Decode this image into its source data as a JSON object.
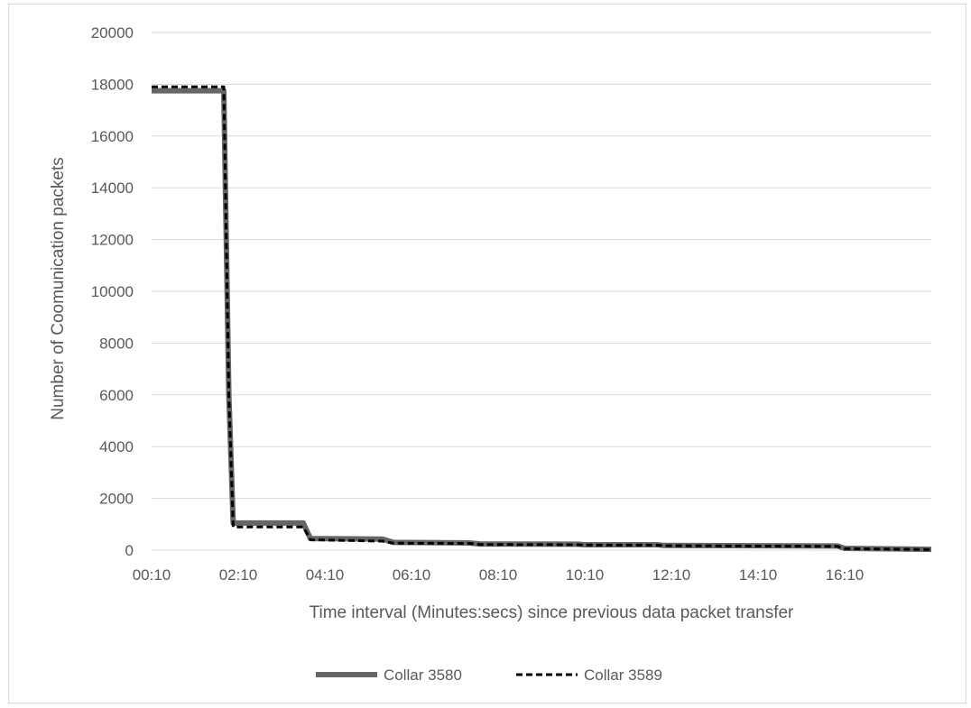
{
  "chart_data": {
    "type": "line",
    "title": "",
    "xlabel": "Time interval (Minutes:secs)  since previous data packet transfer",
    "ylabel": "Number of Coomunication packets",
    "ylim": [
      0,
      20000
    ],
    "y_ticks": [
      "0",
      "2000",
      "4000",
      "6000",
      "8000",
      "10000",
      "12000",
      "14000",
      "16000",
      "18000",
      "20000"
    ],
    "x_ticks": [
      "00:10",
      "02:10",
      "04:10",
      "06:10",
      "08:10",
      "10:10",
      "12:10",
      "14:10",
      "16:10"
    ],
    "x_range_seconds": [
      10,
      1090
    ],
    "grid": "horizontal",
    "legend_position": "bottom",
    "series": [
      {
        "name": "Collar 3580",
        "color": "#666666",
        "dash": "solid",
        "points": [
          [
            "00:10",
            17750
          ],
          [
            "01:50",
            17750
          ],
          [
            "01:57",
            6000
          ],
          [
            "02:03",
            1050
          ],
          [
            "03:40",
            1050
          ],
          [
            "03:50",
            450
          ],
          [
            "05:30",
            430
          ],
          [
            "05:45",
            300
          ],
          [
            "07:30",
            280
          ],
          [
            "07:45",
            240
          ],
          [
            "10:00",
            230
          ],
          [
            "10:10",
            210
          ],
          [
            "11:50",
            210
          ],
          [
            "12:00",
            180
          ],
          [
            "16:00",
            160
          ],
          [
            "16:10",
            70
          ],
          [
            "18:10",
            30
          ]
        ]
      },
      {
        "name": "Collar 3589",
        "color": "#000000",
        "dash": "dashed",
        "points": [
          [
            "00:10",
            17900
          ],
          [
            "01:50",
            17900
          ],
          [
            "01:57",
            6000
          ],
          [
            "02:03",
            900
          ],
          [
            "03:40",
            900
          ],
          [
            "03:50",
            400
          ],
          [
            "05:30",
            350
          ],
          [
            "05:45",
            270
          ],
          [
            "07:30",
            260
          ],
          [
            "07:45",
            220
          ],
          [
            "10:00",
            210
          ],
          [
            "10:10",
            200
          ],
          [
            "11:50",
            195
          ],
          [
            "12:00",
            170
          ],
          [
            "16:00",
            145
          ],
          [
            "16:10",
            60
          ],
          [
            "18:10",
            20
          ]
        ]
      }
    ]
  }
}
